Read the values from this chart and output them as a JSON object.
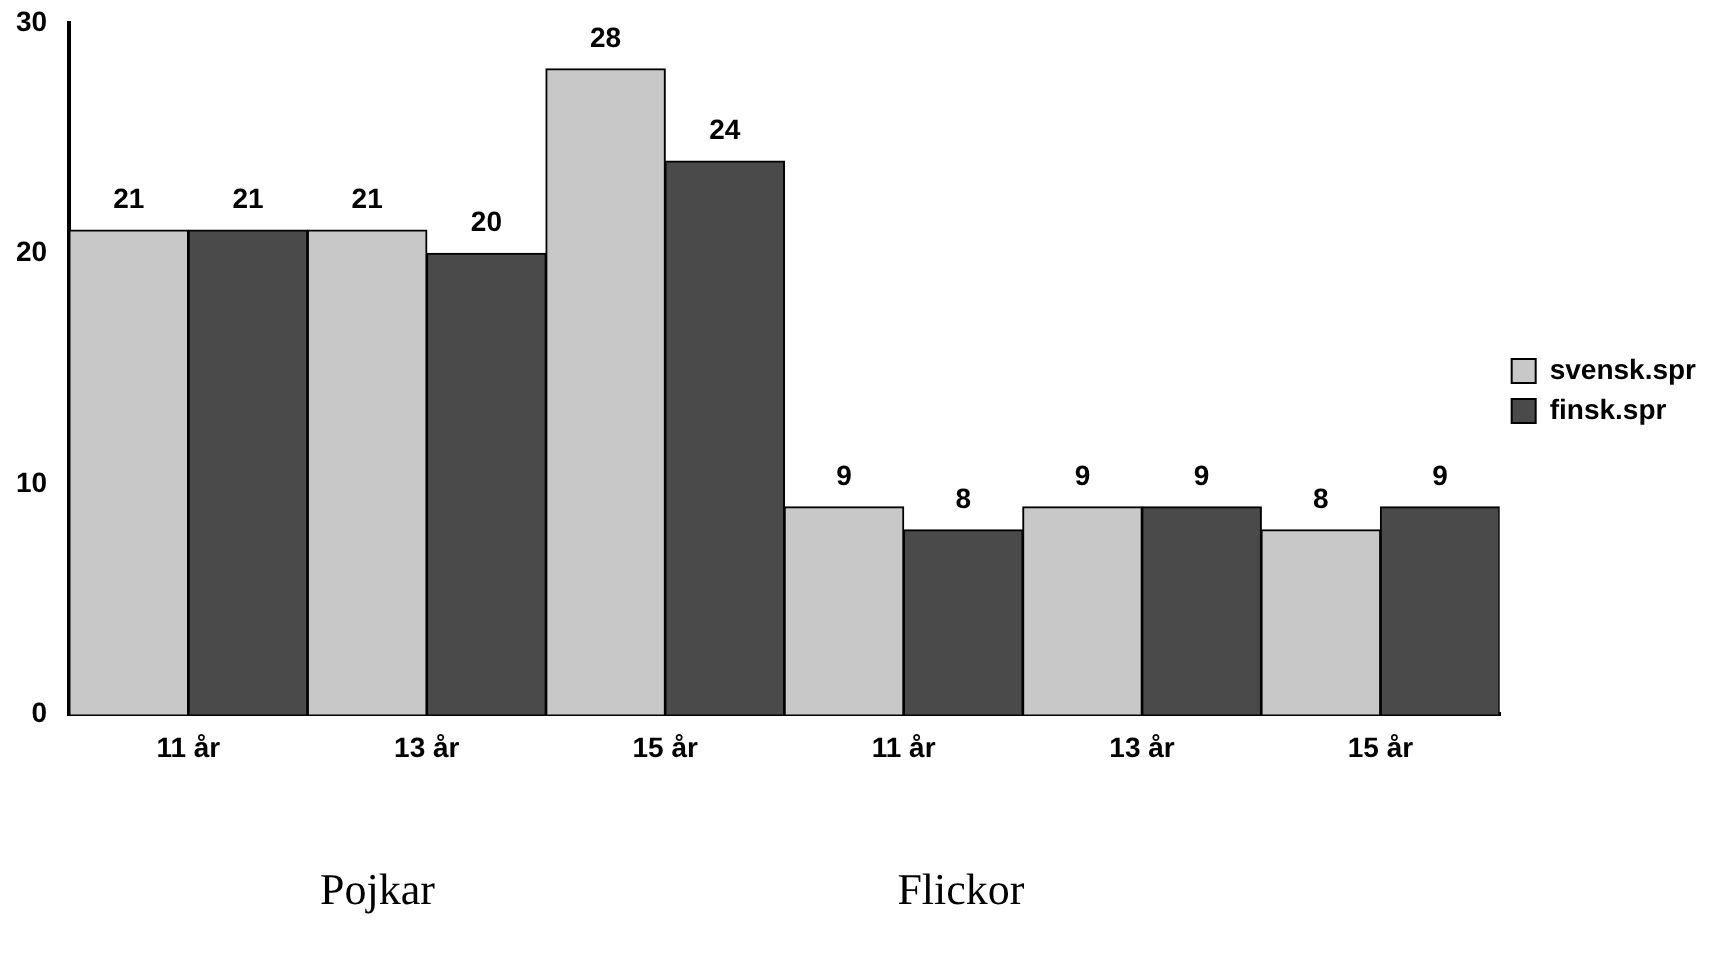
{
  "chart_data": {
    "type": "bar",
    "categories": [
      "11 år",
      "13 år",
      "15 år",
      "11 år",
      "13 år",
      "15 år"
    ],
    "series": [
      {
        "name": "svensk.spr",
        "color": "#c8c8c8",
        "values": [
          21,
          21,
          28,
          9,
          9,
          8
        ]
      },
      {
        "name": "finsk.spr",
        "color": "#4a4a4a",
        "values": [
          21,
          20,
          24,
          8,
          9,
          9
        ]
      }
    ],
    "ylim": [
      0,
      30
    ],
    "yticks": [
      0,
      10,
      20,
      30
    ],
    "grid": false,
    "legend": "right",
    "data_labels": true,
    "annotations": [
      "Pojkar",
      "Flickor"
    ]
  }
}
